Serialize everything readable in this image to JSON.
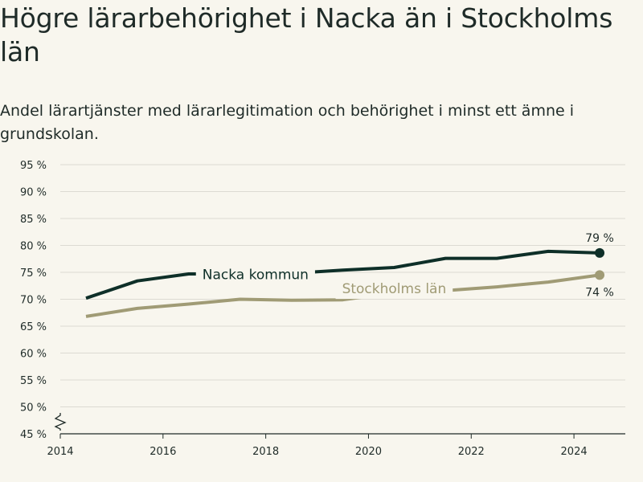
{
  "title": "Högre lärarbehörighet i Nacka än i Stockholms län",
  "subtitle": "Andel lärartjänster med lärarlegitimation och behörighet i minst ett ämne i grundskolan.",
  "colors": {
    "background": "#f8f6ee",
    "text": "#1f2b28",
    "grid": "#dcdad2",
    "nacka": "#0e2f28",
    "stockholm": "#a09b75"
  },
  "chart_data": {
    "type": "line",
    "x": [
      2014.5,
      2015.5,
      2016.5,
      2017.5,
      2018.5,
      2019.5,
      2020.5,
      2021.5,
      2022.5,
      2023.5,
      2024.5
    ],
    "series": [
      {
        "name": "Nacka kommun",
        "values": [
          70.2,
          73.4,
          74.7,
          74.7,
          74.8,
          75.4,
          75.9,
          77.6,
          77.6,
          78.9,
          78.6
        ],
        "end_label": "79 %"
      },
      {
        "name": "Stockholms län",
        "values": [
          66.8,
          68.3,
          69.1,
          70.0,
          69.8,
          69.9,
          71.2,
          71.6,
          72.3,
          73.2,
          74.5
        ],
        "end_label": "74 %"
      }
    ],
    "xlim": [
      2014,
      2025
    ],
    "ylim": [
      45,
      95
    ],
    "x_ticks": [
      2014,
      2016,
      2018,
      2020,
      2022,
      2024
    ],
    "x_tick_labels": [
      "2014",
      "2016",
      "2018",
      "2020",
      "2022",
      "2024"
    ],
    "y_ticks": [
      45,
      50,
      55,
      60,
      65,
      70,
      75,
      80,
      85,
      90,
      95
    ],
    "y_tick_labels": [
      "45 %",
      "50 %",
      "55 %",
      "60 %",
      "65 %",
      "70 %",
      "75 %",
      "80 %",
      "85 %",
      "90 %",
      "95 %"
    ],
    "grid": true,
    "axis_break": true,
    "legend": "inline"
  }
}
